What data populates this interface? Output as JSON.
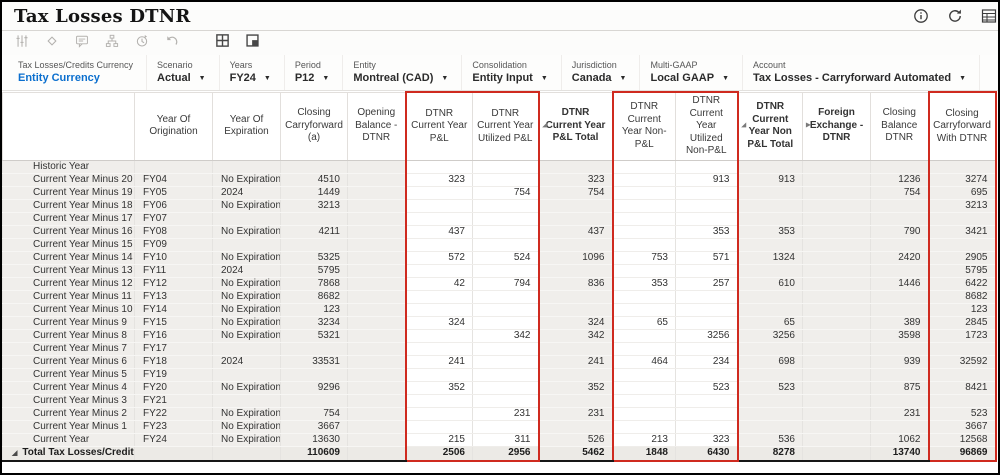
{
  "title": "Tax Losses DTNR",
  "colors": {
    "accent_blue": "#0b6fce",
    "highlight_red": "#cf2a1f"
  },
  "titlebar": {
    "actions": [
      {
        "name": "info-button",
        "icon": "info-icon"
      },
      {
        "name": "refresh-button",
        "icon": "refresh-icon"
      },
      {
        "name": "view-selector-button",
        "icon": "table-icon",
        "clipped": true
      }
    ]
  },
  "toolbar": {
    "buttons": [
      {
        "name": "adjust-button",
        "icon": "sliders-icon",
        "enabled": false
      },
      {
        "name": "layers-button",
        "icon": "layers-icon",
        "enabled": false
      },
      {
        "name": "comment-button",
        "icon": "comment-icon",
        "enabled": false
      },
      {
        "name": "hierarchy-button",
        "icon": "hierarchy-icon",
        "enabled": false
      },
      {
        "name": "history-button",
        "icon": "history-icon",
        "enabled": false
      },
      {
        "name": "undo-button",
        "icon": "undo-icon",
        "enabled": false
      },
      {
        "name": "grid-view-button",
        "icon": "grid-icon",
        "enabled": true
      },
      {
        "name": "freeze-pane-button",
        "icon": "panel-icon",
        "enabled": true
      }
    ]
  },
  "pov": {
    "items": [
      {
        "label": "Tax Losses/Credits Currency",
        "value": "Entity Currency",
        "style": "link",
        "arrow": false
      },
      {
        "label": "Scenario",
        "value": "Actual",
        "arrow": true
      },
      {
        "label": "Years",
        "value": "FY24",
        "arrow": true
      },
      {
        "label": "Period",
        "value": "P12",
        "arrow": true
      },
      {
        "label": "Entity",
        "value": "Montreal (CAD)",
        "arrow": true
      },
      {
        "label": "Consolidation",
        "value": "Entity Input",
        "arrow": true
      },
      {
        "label": "Jurisdiction",
        "value": "Canada",
        "arrow": true
      },
      {
        "label": "Multi-GAAP",
        "value": "Local GAAP",
        "arrow": true
      },
      {
        "label": "Account",
        "value": "Tax Losses - Carryforward Automated",
        "arrow": true
      }
    ]
  },
  "grid": {
    "columns": [
      {
        "label": "Year Of Origination",
        "align": "left"
      },
      {
        "label": "Year Of Expiration",
        "align": "left"
      },
      {
        "label": "Closing Carryforward (a)",
        "align": "right"
      },
      {
        "label": "Opening Balance - DTNR",
        "align": "right"
      },
      {
        "label": "DTNR Current Year P&L",
        "align": "right",
        "editable": true,
        "red": "left"
      },
      {
        "label": "DTNR Current Year Utilized P&L",
        "align": "right",
        "editable": true,
        "red": "right"
      },
      {
        "label": "DTNR Current Year P&L Total",
        "align": "right",
        "bold": true,
        "marker": "collapse"
      },
      {
        "label": "DTNR Current Year Non-P&L",
        "align": "right",
        "editable": true,
        "red": "left"
      },
      {
        "label": "DTNR Current Year Utilized Non-P&L",
        "align": "right",
        "editable": true,
        "red": "right"
      },
      {
        "label": "DTNR Current Year Non P&L Total",
        "align": "right",
        "bold": true,
        "marker": "collapse"
      },
      {
        "label": "Foreign Exchange - DTNR",
        "align": "right",
        "bold": true,
        "marker": "expand"
      },
      {
        "label": "Closing Balance DTNR",
        "align": "right"
      },
      {
        "label": "Closing Carryforward With DTNR",
        "align": "right",
        "red": "both"
      }
    ],
    "rows": [
      {
        "label": "Historic Year",
        "cells": [
          "",
          "",
          "",
          "",
          "",
          "",
          "",
          "",
          "",
          "",
          "",
          "",
          ""
        ]
      },
      {
        "label": "Current Year Minus 20",
        "cells": [
          "FY04",
          "No Expiration",
          "4510",
          "",
          "323",
          "",
          "323",
          "",
          "913",
          "913",
          "",
          "1236",
          "3274"
        ]
      },
      {
        "label": "Current Year Minus 19",
        "cells": [
          "FY05",
          "2024",
          "1449",
          "",
          "",
          "754",
          "754",
          "",
          "",
          "",
          "",
          "754",
          "695"
        ]
      },
      {
        "label": "Current Year Minus 18",
        "cells": [
          "FY06",
          "No Expiration",
          "3213",
          "",
          "",
          "",
          "",
          "",
          "",
          "",
          "",
          "",
          "3213"
        ]
      },
      {
        "label": "Current Year Minus 17",
        "cells": [
          "FY07",
          "",
          "",
          "",
          "",
          "",
          "",
          "",
          "",
          "",
          "",
          "",
          ""
        ]
      },
      {
        "label": "Current Year Minus 16",
        "cells": [
          "FY08",
          "No Expiration",
          "4211",
          "",
          "437",
          "",
          "437",
          "",
          "353",
          "353",
          "",
          "790",
          "3421"
        ]
      },
      {
        "label": "Current Year Minus 15",
        "cells": [
          "FY09",
          "",
          "",
          "",
          "",
          "",
          "",
          "",
          "",
          "",
          "",
          "",
          ""
        ]
      },
      {
        "label": "Current Year Minus 14",
        "cells": [
          "FY10",
          "No Expiration",
          "5325",
          "",
          "572",
          "524",
          "1096",
          "753",
          "571",
          "1324",
          "",
          "2420",
          "2905"
        ]
      },
      {
        "label": "Current Year Minus 13",
        "cells": [
          "FY11",
          "2024",
          "5795",
          "",
          "",
          "",
          "",
          "",
          "",
          "",
          "",
          "",
          "5795"
        ]
      },
      {
        "label": "Current Year Minus 12",
        "cells": [
          "FY12",
          "No Expiration",
          "7868",
          "",
          "42",
          "794",
          "836",
          "353",
          "257",
          "610",
          "",
          "1446",
          "6422"
        ]
      },
      {
        "label": "Current Year Minus 11",
        "cells": [
          "FY13",
          "No Expiration",
          "8682",
          "",
          "",
          "",
          "",
          "",
          "",
          "",
          "",
          "",
          "8682"
        ]
      },
      {
        "label": "Current Year Minus 10",
        "cells": [
          "FY14",
          "No Expiration",
          "123",
          "",
          "",
          "",
          "",
          "",
          "",
          "",
          "",
          "",
          "123"
        ]
      },
      {
        "label": "Current Year Minus 9",
        "cells": [
          "FY15",
          "No Expiration",
          "3234",
          "",
          "324",
          "",
          "324",
          "65",
          "",
          "65",
          "",
          "389",
          "2845"
        ]
      },
      {
        "label": "Current Year Minus 8",
        "cells": [
          "FY16",
          "No Expiration",
          "5321",
          "",
          "",
          "342",
          "342",
          "",
          "3256",
          "3256",
          "",
          "3598",
          "1723"
        ]
      },
      {
        "label": "Current Year Minus 7",
        "cells": [
          "FY17",
          "",
          "",
          "",
          "",
          "",
          "",
          "",
          "",
          "",
          "",
          "",
          ""
        ]
      },
      {
        "label": "Current Year Minus 6",
        "cells": [
          "FY18",
          "2024",
          "33531",
          "",
          "241",
          "",
          "241",
          "464",
          "234",
          "698",
          "",
          "939",
          "32592"
        ]
      },
      {
        "label": "Current Year Minus 5",
        "cells": [
          "FY19",
          "",
          "",
          "",
          "",
          "",
          "",
          "",
          "",
          "",
          "",
          "",
          ""
        ]
      },
      {
        "label": "Current Year Minus 4",
        "cells": [
          "FY20",
          "No Expiration",
          "9296",
          "",
          "352",
          "",
          "352",
          "",
          "523",
          "523",
          "",
          "875",
          "8421"
        ]
      },
      {
        "label": "Current Year Minus 3",
        "cells": [
          "FY21",
          "",
          "",
          "",
          "",
          "",
          "",
          "",
          "",
          "",
          "",
          "",
          ""
        ]
      },
      {
        "label": "Current Year Minus 2",
        "cells": [
          "FY22",
          "No Expiration",
          "754",
          "",
          "",
          "231",
          "231",
          "",
          "",
          "",
          "",
          "231",
          "523"
        ]
      },
      {
        "label": "Current Year Minus 1",
        "cells": [
          "FY23",
          "No Expiration",
          "3667",
          "",
          "",
          "",
          "",
          "",
          "",
          "",
          "",
          "",
          "3667"
        ]
      },
      {
        "label": "Current Year",
        "cells": [
          "FY24",
          "No Expiration",
          "13630",
          "",
          "215",
          "311",
          "526",
          "213",
          "323",
          "536",
          "",
          "1062",
          "12568"
        ]
      }
    ],
    "total_row": {
      "label": "Total Tax Losses/Credits",
      "marker": "collapse",
      "cells": [
        "",
        "",
        "110609",
        "",
        "2506",
        "2956",
        "5462",
        "1848",
        "6430",
        "8278",
        "",
        "13740",
        "96869"
      ]
    }
  }
}
